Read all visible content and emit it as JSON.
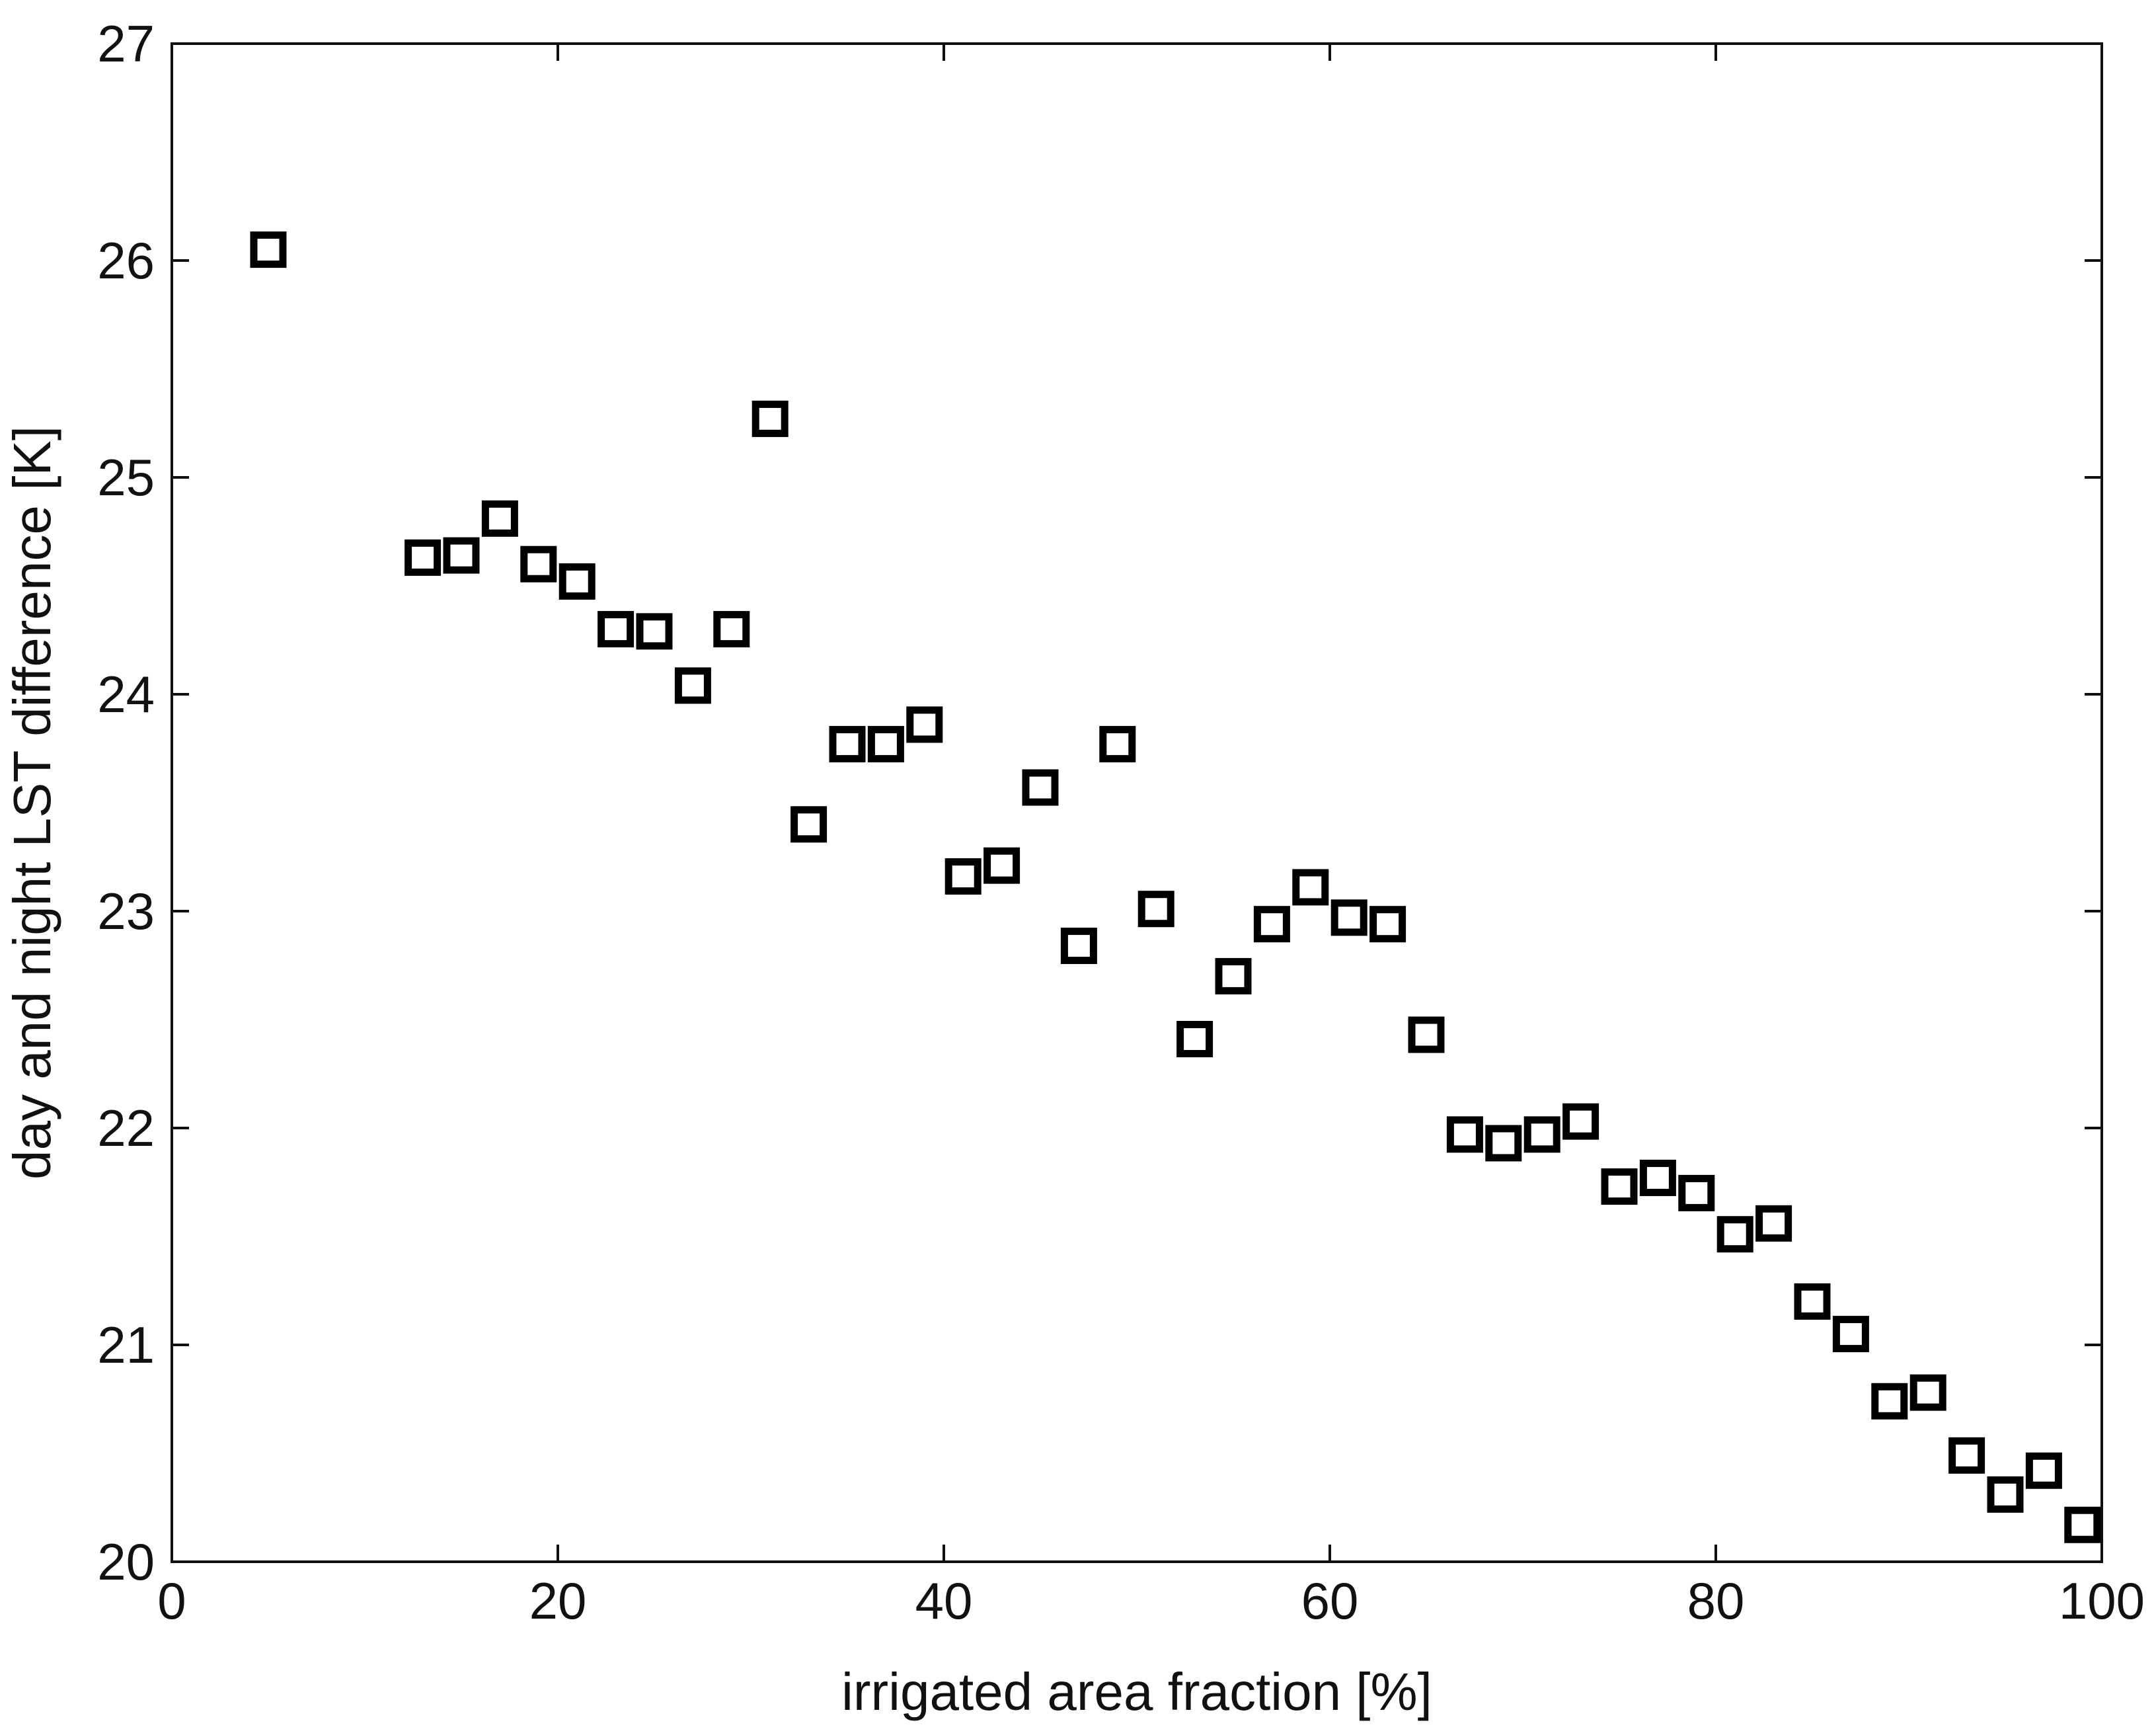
{
  "chart_data": {
    "type": "scatter",
    "title": "",
    "xlabel": "irrigated area fraction [%]",
    "ylabel": "day and night LST difference [K]",
    "xlim": [
      0,
      100
    ],
    "ylim": [
      20,
      27
    ],
    "xticks": [
      0,
      20,
      40,
      60,
      80,
      100
    ],
    "yticks": [
      20,
      21,
      22,
      23,
      24,
      25,
      26,
      27
    ],
    "grid": false,
    "legend": "none",
    "marker": "open-square",
    "marker_color": "#000000",
    "series": [
      {
        "points": [
          [
            5,
            26.05
          ],
          [
            13,
            24.63
          ],
          [
            15,
            24.64
          ],
          [
            17,
            24.81
          ],
          [
            19,
            24.6
          ],
          [
            21,
            24.52
          ],
          [
            23,
            24.3
          ],
          [
            25,
            24.29
          ],
          [
            27,
            24.04
          ],
          [
            29,
            24.3
          ],
          [
            31,
            25.27
          ],
          [
            33,
            23.4
          ],
          [
            35,
            23.77
          ],
          [
            37,
            23.77
          ],
          [
            39,
            23.86
          ],
          [
            41,
            23.16
          ],
          [
            43,
            23.21
          ],
          [
            45,
            23.57
          ],
          [
            47,
            22.84
          ],
          [
            49,
            23.77
          ],
          [
            51,
            23.01
          ],
          [
            53,
            22.41
          ],
          [
            55,
            22.7
          ],
          [
            57,
            22.94
          ],
          [
            59,
            23.11
          ],
          [
            61,
            22.97
          ],
          [
            63,
            22.94
          ],
          [
            65,
            22.43
          ],
          [
            67,
            21.97
          ],
          [
            69,
            21.93
          ],
          [
            71,
            21.97
          ],
          [
            73,
            22.03
          ],
          [
            75,
            21.73
          ],
          [
            77,
            21.77
          ],
          [
            79,
            21.7
          ],
          [
            81,
            21.51
          ],
          [
            83,
            21.56
          ],
          [
            85,
            21.2
          ],
          [
            87,
            21.05
          ],
          [
            89,
            20.74
          ],
          [
            91,
            20.78
          ],
          [
            93,
            20.49
          ],
          [
            95,
            20.31
          ],
          [
            97,
            20.42
          ],
          [
            99,
            20.17
          ]
        ]
      }
    ]
  }
}
